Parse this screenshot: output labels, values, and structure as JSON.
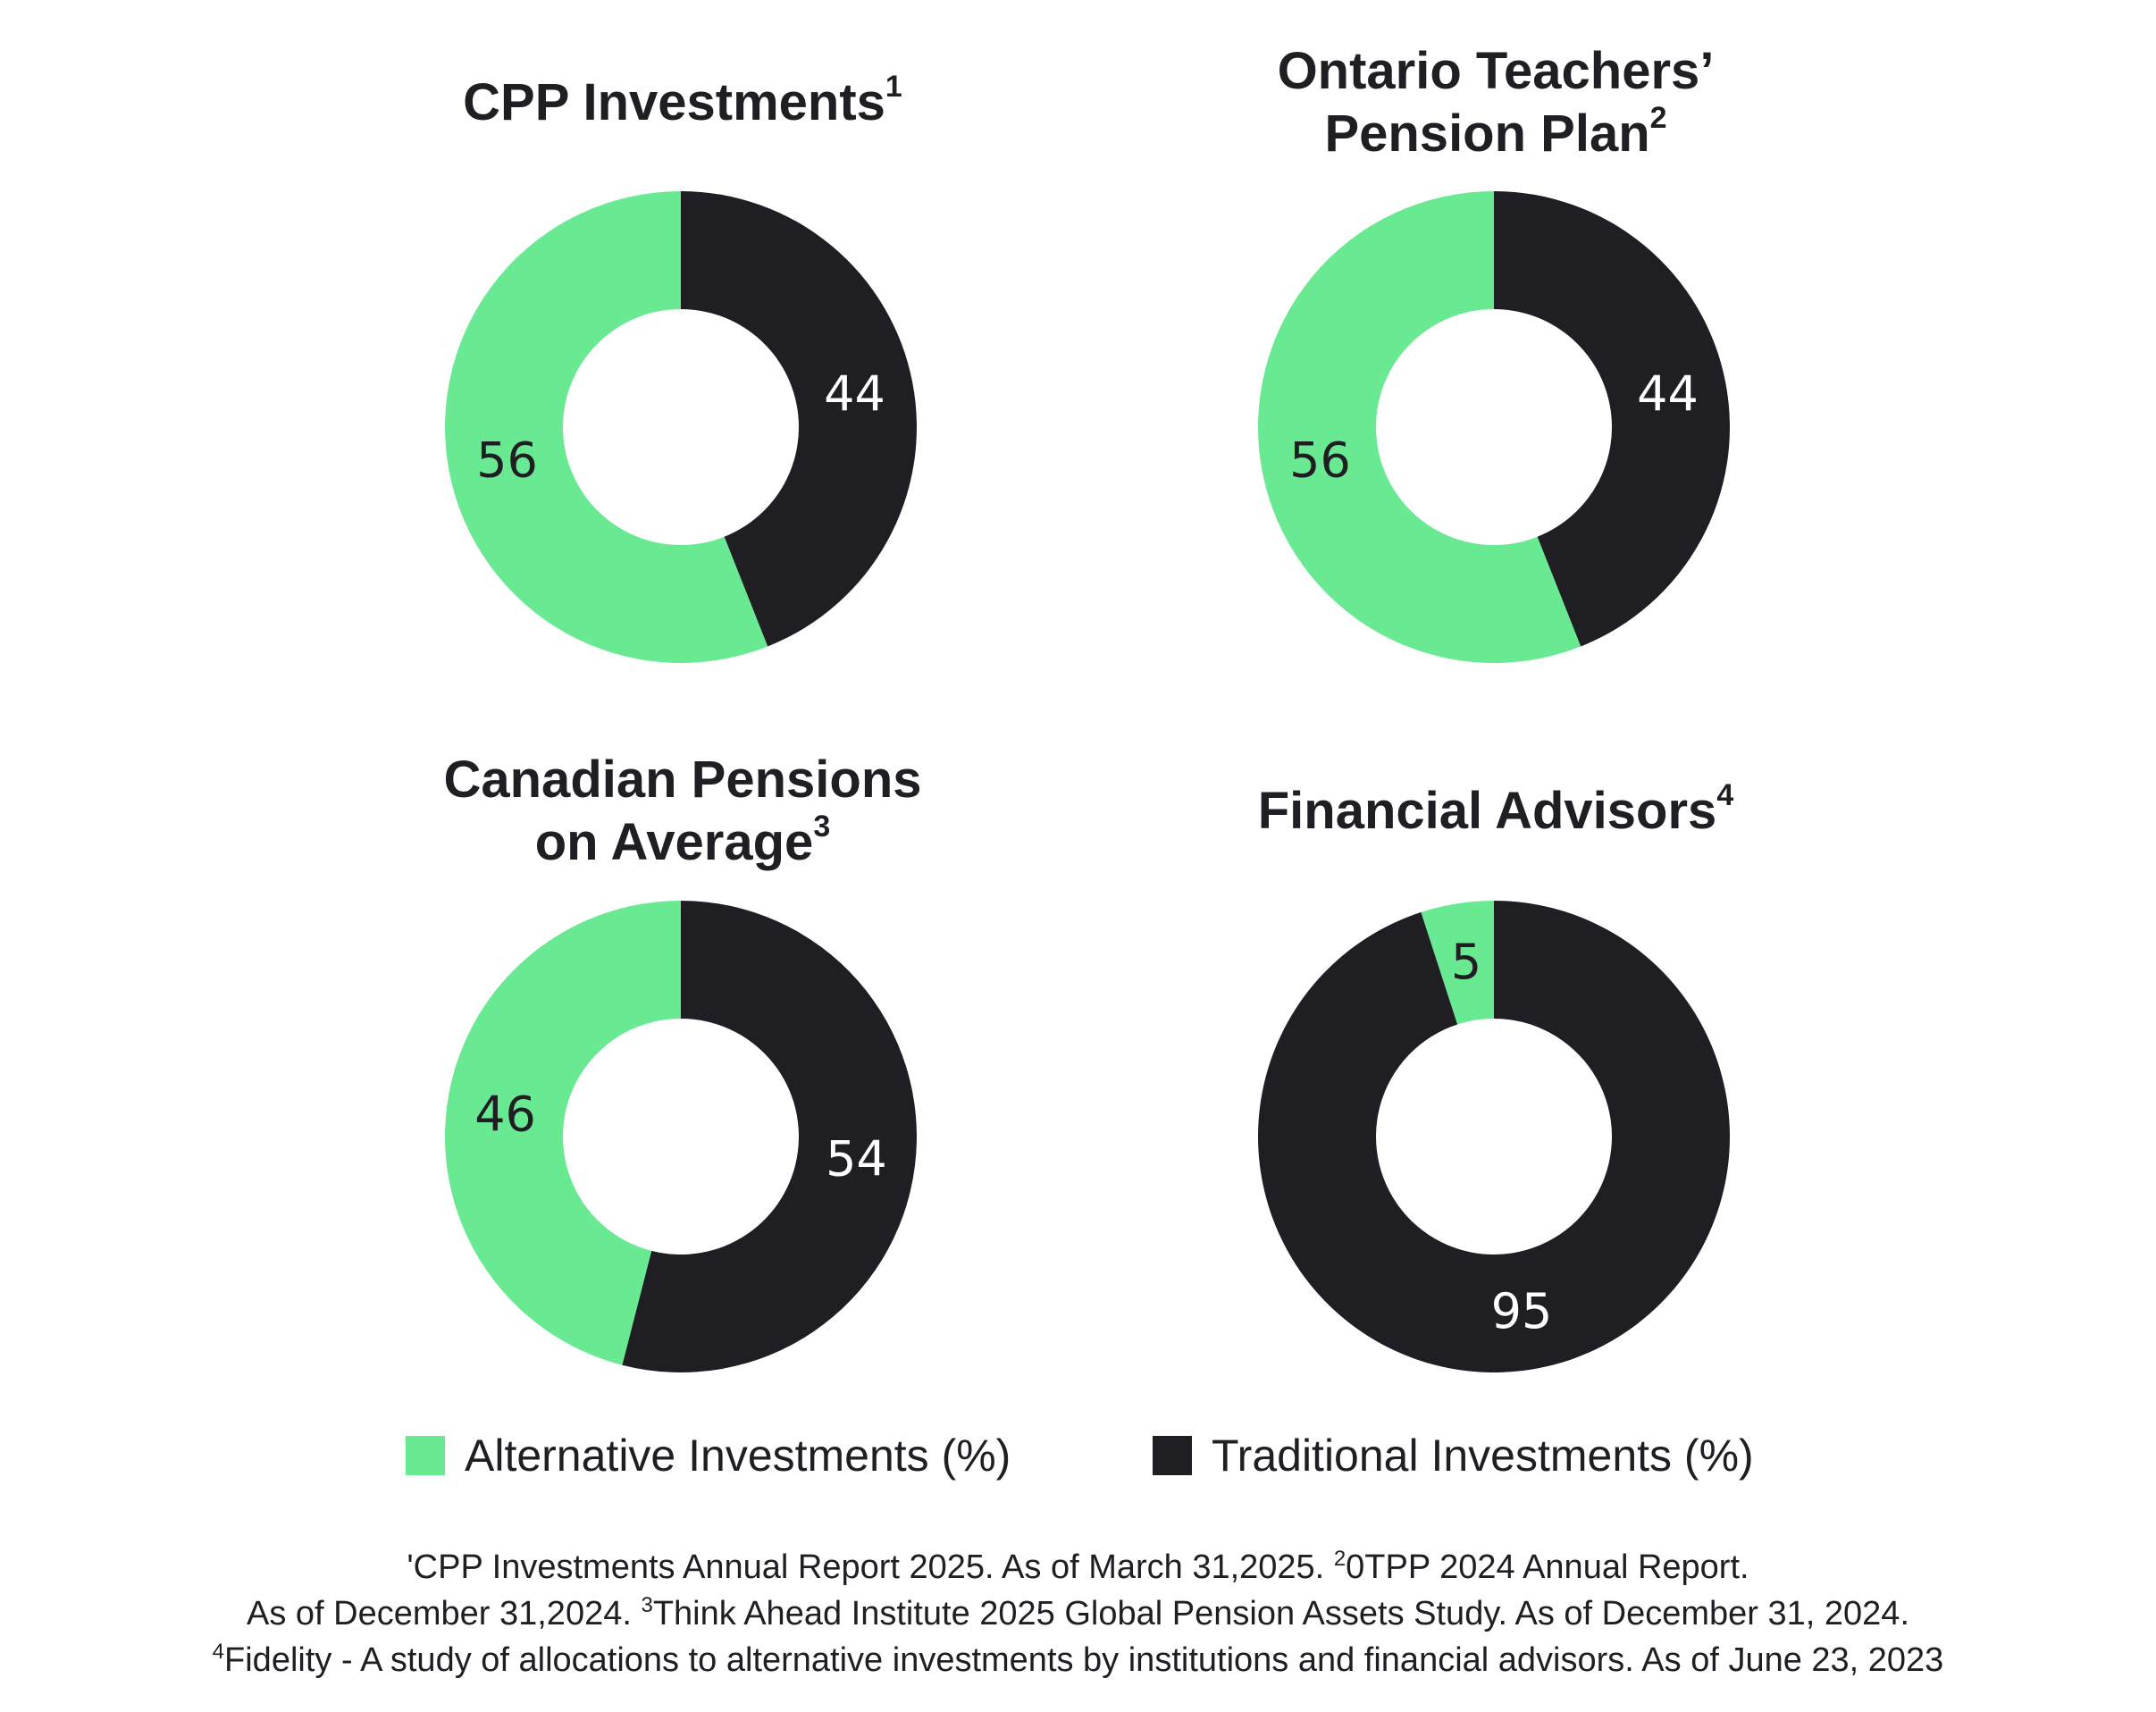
{
  "colors": {
    "alternative": "#6ae993",
    "traditional": "#1f1e23",
    "label_on_alt": "#1f1e23",
    "label_on_trad": "#ffffff"
  },
  "chart_data": [
    {
      "type": "pie",
      "variant": "donut",
      "title": "CPP Investments",
      "title_sup": "1",
      "slices": [
        {
          "name": "Traditional Investments (%)",
          "value": 44
        },
        {
          "name": "Alternative Investments (%)",
          "value": 56
        }
      ]
    },
    {
      "type": "pie",
      "variant": "donut",
      "title_lines": [
        "Ontario Teachers’",
        "Pension Plan"
      ],
      "title_sup": "2",
      "slices": [
        {
          "name": "Traditional Investments (%)",
          "value": 44
        },
        {
          "name": "Alternative Investments (%)",
          "value": 56
        }
      ]
    },
    {
      "type": "pie",
      "variant": "donut",
      "title_lines": [
        "Canadian Pensions",
        "on Average"
      ],
      "title_sup": "3",
      "slices": [
        {
          "name": "Traditional Investments (%)",
          "value": 54
        },
        {
          "name": "Alternative Investments (%)",
          "value": 46
        }
      ]
    },
    {
      "type": "pie",
      "variant": "donut",
      "title": "Financial Advisors",
      "title_sup": "4",
      "slices": [
        {
          "name": "Traditional Investments (%)",
          "value": 95
        },
        {
          "name": "Alternative Investments (%)",
          "value": 5
        }
      ]
    }
  ],
  "legend": {
    "alternative": "Alternative Investments (%)",
    "traditional": "Traditional Investments (%)"
  },
  "footnotes": {
    "line1_a": "'CPP Investments Annual Report 2025. As of March 31,2025. ",
    "line1_sup": "2",
    "line1_b": "0TPP 2024 Annual Report.",
    "line2_a": "As of December 31,2024. ",
    "line2_sup": "3",
    "line2_b": "Think Ahead Institute 2025 Global Pension Assets Study. As of December 31, 2024.",
    "line3_sup": "4",
    "line3_b": "Fidelity - A study of allocations to alternative investments by institutions and financial advisors. As of June 23, 2023"
  }
}
